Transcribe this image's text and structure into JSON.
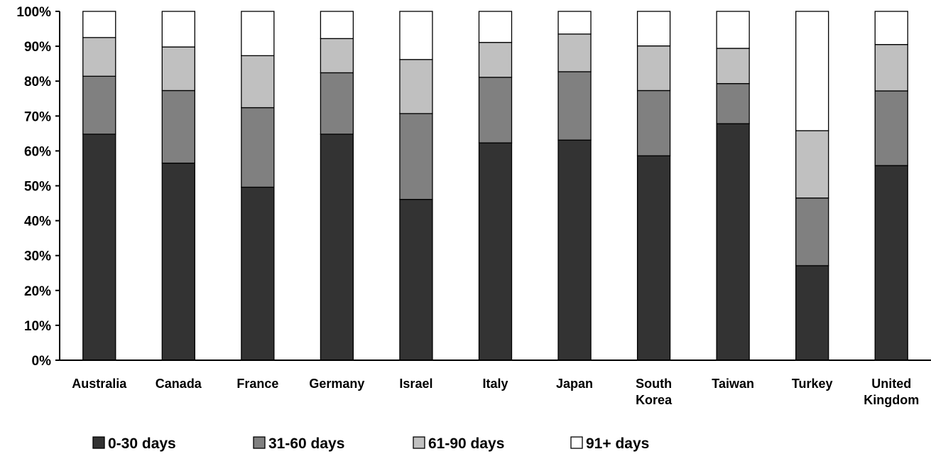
{
  "chart_data": {
    "type": "bar",
    "stacked": true,
    "percent_stacked": true,
    "categories": [
      [
        "Australia"
      ],
      [
        "Canada"
      ],
      [
        "France"
      ],
      [
        "Germany"
      ],
      [
        "Israel"
      ],
      [
        "Italy"
      ],
      [
        "Japan"
      ],
      [
        "South",
        "Korea"
      ],
      [
        "Taiwan"
      ],
      [
        "Turkey"
      ],
      [
        "United",
        "Kingdom"
      ]
    ],
    "series": [
      {
        "name": "0-30 days",
        "color": "#333333",
        "values": [
          64.8,
          56.5,
          49.6,
          64.8,
          46.1,
          62.3,
          63.1,
          58.6,
          67.8,
          27.1,
          55.8
        ]
      },
      {
        "name": "31-60 days",
        "color": "#808080",
        "values": [
          16.6,
          20.8,
          22.8,
          17.6,
          24.6,
          18.8,
          19.6,
          18.7,
          11.5,
          19.4,
          21.4
        ]
      },
      {
        "name": "61-90 days",
        "color": "#c0c0c0",
        "values": [
          11.1,
          12.5,
          14.9,
          9.8,
          15.5,
          10.0,
          10.8,
          12.8,
          10.1,
          19.3,
          13.3
        ]
      },
      {
        "name": "91+ days",
        "color": "#ffffff",
        "values": [
          7.5,
          10.2,
          12.7,
          7.8,
          13.8,
          8.9,
          6.5,
          9.9,
          10.6,
          34.2,
          9.5
        ]
      }
    ],
    "ylim": [
      0,
      100
    ],
    "yticks": [
      "0%",
      "10%",
      "20%",
      "30%",
      "40%",
      "50%",
      "60%",
      "70%",
      "80%",
      "90%",
      "100%"
    ],
    "title": "",
    "xlabel": "",
    "ylabel": "",
    "grid": false,
    "legend_position": "bottom"
  }
}
